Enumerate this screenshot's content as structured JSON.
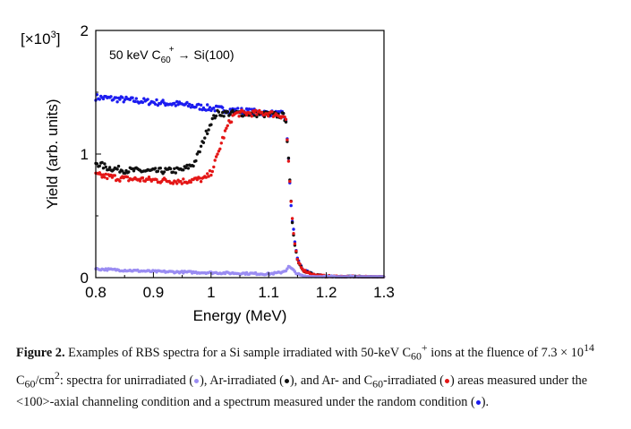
{
  "chart_data": {
    "type": "scatter",
    "title": "",
    "annotation": {
      "text": "50 keV C",
      "sub": "60",
      "sup": "+",
      "arrow": "→",
      "target": "Si(100)"
    },
    "multiplier": {
      "prefix": "[×10",
      "sup": "3",
      "suffix": "]"
    },
    "xlabel": "Energy (MeV)",
    "ylabel": "Yield (arb. units)",
    "xlim": [
      0.8,
      1.3
    ],
    "ylim": [
      0,
      2
    ],
    "xticks": [
      "0.8",
      "0.9",
      "1",
      "1.1",
      "1.2",
      "1.3"
    ],
    "yticks": [
      "0",
      "1",
      "2"
    ],
    "series": [
      {
        "color": "#1c1cf0",
        "profile": "random",
        "knots": [
          [
            0.8,
            1.46
          ],
          [
            0.85,
            1.44
          ],
          [
            0.9,
            1.42
          ],
          [
            0.95,
            1.4
          ],
          [
            1.0,
            1.37
          ],
          [
            1.05,
            1.35
          ],
          [
            1.1,
            1.33
          ],
          [
            1.125,
            1.32
          ],
          [
            1.13,
            1.28
          ],
          [
            1.135,
            0.9
          ],
          [
            1.14,
            0.5
          ],
          [
            1.145,
            0.3
          ],
          [
            1.15,
            0.15
          ],
          [
            1.16,
            0.06
          ],
          [
            1.18,
            0.02
          ],
          [
            1.2,
            0.01
          ],
          [
            1.3,
            0.0
          ]
        ]
      },
      {
        "color": "#111111",
        "profile": "ar",
        "knots": [
          [
            0.8,
            0.93
          ],
          [
            0.82,
            0.89
          ],
          [
            0.85,
            0.87
          ],
          [
            0.9,
            0.86
          ],
          [
            0.95,
            0.87
          ],
          [
            0.97,
            0.92
          ],
          [
            0.98,
            1.02
          ],
          [
            0.99,
            1.15
          ],
          [
            1.0,
            1.26
          ],
          [
            1.01,
            1.33
          ],
          [
            1.05,
            1.33
          ],
          [
            1.1,
            1.32
          ],
          [
            1.125,
            1.31
          ],
          [
            1.13,
            1.28
          ],
          [
            1.135,
            0.9
          ],
          [
            1.14,
            0.5
          ],
          [
            1.145,
            0.28
          ],
          [
            1.15,
            0.14
          ],
          [
            1.16,
            0.06
          ],
          [
            1.18,
            0.02
          ],
          [
            1.2,
            0.01
          ],
          [
            1.3,
            0.0
          ]
        ]
      },
      {
        "color": "#e41616",
        "profile": "arc60",
        "knots": [
          [
            0.8,
            0.83
          ],
          [
            0.85,
            0.8
          ],
          [
            0.9,
            0.79
          ],
          [
            0.95,
            0.78
          ],
          [
            0.99,
            0.8
          ],
          [
            1.0,
            0.85
          ],
          [
            1.01,
            0.97
          ],
          [
            1.02,
            1.12
          ],
          [
            1.03,
            1.24
          ],
          [
            1.04,
            1.32
          ],
          [
            1.05,
            1.33
          ],
          [
            1.1,
            1.33
          ],
          [
            1.125,
            1.31
          ],
          [
            1.13,
            1.28
          ],
          [
            1.135,
            0.9
          ],
          [
            1.14,
            0.5
          ],
          [
            1.145,
            0.28
          ],
          [
            1.15,
            0.14
          ],
          [
            1.16,
            0.06
          ],
          [
            1.18,
            0.02
          ],
          [
            1.2,
            0.01
          ],
          [
            1.3,
            0.0
          ]
        ]
      },
      {
        "color": "#9a8cf2",
        "profile": "unirradiated",
        "knots": [
          [
            0.8,
            0.07
          ],
          [
            0.85,
            0.06
          ],
          [
            0.9,
            0.05
          ],
          [
            0.95,
            0.045
          ],
          [
            1.0,
            0.04
          ],
          [
            1.05,
            0.035
          ],
          [
            1.1,
            0.03
          ],
          [
            1.12,
            0.04
          ],
          [
            1.13,
            0.06
          ],
          [
            1.135,
            0.09
          ],
          [
            1.14,
            0.07
          ],
          [
            1.15,
            0.03
          ],
          [
            1.16,
            0.01
          ],
          [
            1.3,
            0.0
          ]
        ]
      }
    ]
  },
  "caption": {
    "label": "Figure 2.",
    "text1": " Examples of RBS spectra for a Si sample irradiated with 50-keV C",
    "sub1": "60",
    "sup1": "+",
    "text2": " ions at the fluence of 7.3 × 10",
    "sup2": "14",
    "text3": " C",
    "sub3": "60",
    "text4": "/cm",
    "sup4": "2",
    "text5": ": spectra for unirradiated (",
    "text6": "), Ar-irradiated (",
    "text7": "), and Ar- and C",
    "sub7": "60",
    "text8": "-irradiated (",
    "text9": ") areas measured under the <100>-axial channeling condition and a spectrum measured under the random condition (",
    "text10": ")."
  }
}
